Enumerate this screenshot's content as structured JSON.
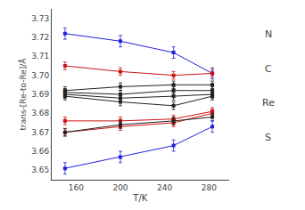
{
  "chart_data": {
    "type": "line",
    "xlabel": "T/K",
    "ylabel": "trans-[Re-to-Re]/Å",
    "x": [
      150,
      200,
      248,
      283
    ],
    "xlim": [
      138,
      298
    ],
    "xticks": [
      160,
      200,
      240,
      280
    ],
    "ylim": [
      3.645,
      3.735
    ],
    "yticks": [
      3.65,
      3.66,
      3.67,
      3.68,
      3.69,
      {
        "value": 3.7,
        "label": "3.70"
      },
      3.71,
      3.72,
      3.73
    ],
    "grid": false,
    "marker": "square",
    "line_style": "solid",
    "series": [
      {
        "color": "#2222dd",
        "values": [
          3.722,
          3.718,
          3.712,
          3.701
        ],
        "yerr": [
          0.003,
          0.003,
          0.003,
          0.003
        ]
      },
      {
        "color": "#cc1111",
        "values": [
          3.705,
          3.702,
          3.7,
          3.701
        ],
        "yerr": [
          0.002,
          0.002,
          0.002,
          0.002
        ]
      },
      {
        "color": "#222222",
        "values": [
          3.692,
          3.694,
          3.695,
          3.695
        ],
        "yerr": [
          0.002,
          0.002,
          0.002,
          0.002
        ]
      },
      {
        "color": "#222222",
        "values": [
          3.691,
          3.69,
          3.692,
          3.692
        ],
        "yerr": [
          0.002,
          0.002,
          0.002,
          0.002
        ]
      },
      {
        "color": "#222222",
        "values": [
          3.69,
          3.688,
          3.689,
          3.69
        ],
        "yerr": [
          0.002,
          0.002,
          0.002,
          0.002
        ]
      },
      {
        "color": "#222222",
        "values": [
          3.689,
          3.686,
          3.684,
          3.689
        ],
        "yerr": [
          0.002,
          0.002,
          0.002,
          0.002
        ]
      },
      {
        "color": "#cc1111",
        "values": [
          3.676,
          3.676,
          3.677,
          3.681
        ],
        "yerr": [
          0.002,
          0.002,
          0.002,
          0.002
        ]
      },
      {
        "color": "#cc1111",
        "values": [
          3.67,
          3.673,
          3.675,
          3.68
        ],
        "yerr": [
          0.002,
          0.002,
          0.002,
          0.002
        ]
      },
      {
        "color": "#222222",
        "values": [
          3.67,
          3.674,
          3.676,
          3.678
        ],
        "yerr": [
          0.002,
          0.002,
          0.002,
          0.002
        ]
      },
      {
        "color": "#2222dd",
        "values": [
          3.651,
          3.657,
          3.663,
          3.673
        ],
        "yerr": [
          0.003,
          0.003,
          0.003,
          0.003
        ]
      }
    ],
    "annotations": [
      "N",
      "C",
      "Re",
      "S"
    ]
  }
}
